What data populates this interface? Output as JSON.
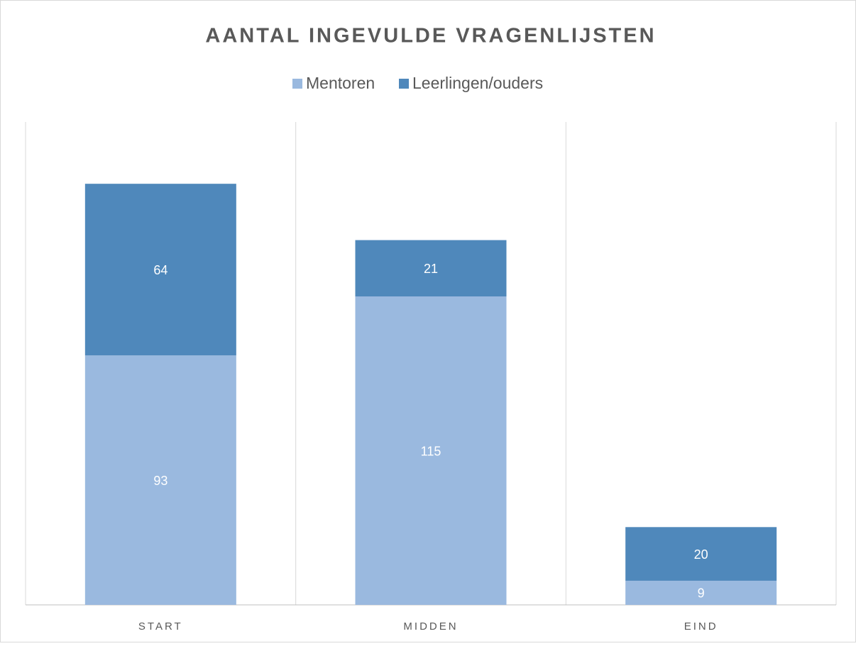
{
  "chart_data": {
    "type": "stacked_bar",
    "title": "AANTAL INGEVULDE VRAGENLIJSTEN",
    "categories": [
      "START",
      "MIDDEN",
      "EIND"
    ],
    "series": [
      {
        "name": "Mentoren",
        "color": "#9ab9df",
        "values": [
          93,
          115,
          9
        ]
      },
      {
        "name": "Leerlingen/ouders",
        "color": "#4f88bb",
        "values": [
          64,
          21,
          20
        ]
      }
    ],
    "legend": "top"
  }
}
